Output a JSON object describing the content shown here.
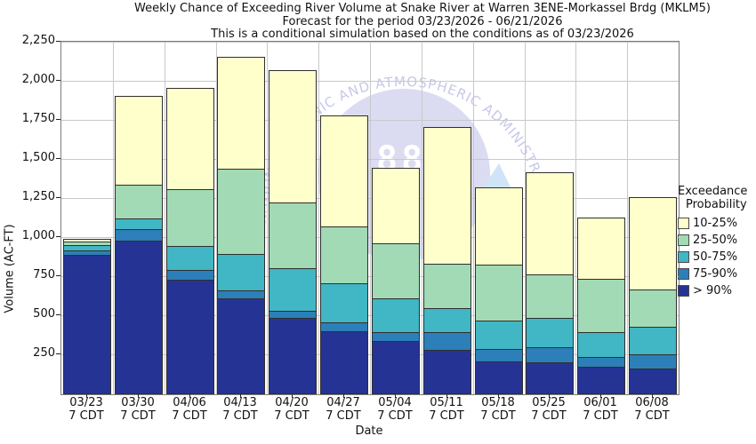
{
  "title": {
    "line1": "Weekly Chance of Exceeding River Volume at Snake River at Warren 3ENE-Morkassel Brdg (MKLM5)",
    "line2": "Forecast for the period 03/23/2026 - 06/21/2026",
    "line3": "This is a conditional simulation based on the conditions as of 03/23/2026"
  },
  "y_axis": {
    "label": "Volume (AC-FT)",
    "max": 2250,
    "ticks": [
      {
        "v": 250,
        "label": "250"
      },
      {
        "v": 500,
        "label": "500"
      },
      {
        "v": 750,
        "label": "750"
      },
      {
        "v": 1000,
        "label": "1,000"
      },
      {
        "v": 1250,
        "label": "1,250"
      },
      {
        "v": 1500,
        "label": "1,500"
      },
      {
        "v": 1750,
        "label": "1,750"
      },
      {
        "v": 2000,
        "label": "2,000"
      },
      {
        "v": 2250,
        "label": "2,250"
      }
    ]
  },
  "x_axis": {
    "label": "Date",
    "sub_label": "7 CDT"
  },
  "legend": {
    "title_line1": "Exceedance",
    "title_line2": "Probability",
    "items": [
      {
        "label": "10-25%",
        "color": "#FFFFCC"
      },
      {
        "label": "25-50%",
        "color": "#A1DAB4"
      },
      {
        "label": "50-75%",
        "color": "#41B6C4"
      },
      {
        "label": "75-90%",
        "color": "#2C7FB8"
      },
      {
        "label": "> 90%",
        "color": "#253494"
      }
    ]
  },
  "watermark": {
    "arc_text": "NATIONAL OCEANIC AND ATMOSPHERIC ADMINISTRATION",
    "badge_text": "88",
    "arc_color": "#c6c8e8",
    "dome_color": "#dbdcf2",
    "triangle_color": "#cfe4f8"
  },
  "chart_data": {
    "type": "bar",
    "stacked": true,
    "title": "Weekly Chance of Exceeding River Volume at Snake River at Warren 3ENE-Morkassel Brdg (MKLM5)",
    "xlabel": "Date",
    "ylabel": "Volume (AC-FT)",
    "ylim": [
      0,
      2250
    ],
    "grid": true,
    "legend_position": "right",
    "categories": [
      "03/23",
      "03/30",
      "04/06",
      "04/13",
      "04/20",
      "04/27",
      "05/04",
      "05/11",
      "05/18",
      "05/25",
      "06/01",
      "06/08"
    ],
    "category_sub_label": "7 CDT",
    "series": [
      {
        "name": "> 90%",
        "color": "#253494",
        "values": [
          880,
          970,
          720,
          605,
          475,
          390,
          330,
          275,
          200,
          195,
          165,
          155
        ]
      },
      {
        "name": "75-90%",
        "color": "#2C7FB8",
        "values": [
          30,
          75,
          65,
          50,
          50,
          60,
          55,
          110,
          80,
          95,
          60,
          90
        ]
      },
      {
        "name": "50-75%",
        "color": "#41B6C4",
        "values": [
          35,
          70,
          155,
          230,
          270,
          250,
          215,
          155,
          180,
          185,
          160,
          175
        ]
      },
      {
        "name": "25-50%",
        "color": "#A1DAB4",
        "values": [
          20,
          215,
          360,
          545,
          420,
          360,
          355,
          285,
          360,
          280,
          345,
          240
        ]
      },
      {
        "name": "10-25%",
        "color": "#FFFFCC",
        "values": [
          20,
          570,
          650,
          720,
          845,
          710,
          485,
          875,
          490,
          655,
          390,
          590
        ]
      }
    ],
    "totals": [
      985,
      1900,
      1950,
      2150,
      2060,
      1770,
      1440,
      1700,
      1310,
      1410,
      1120,
      1250
    ]
  }
}
